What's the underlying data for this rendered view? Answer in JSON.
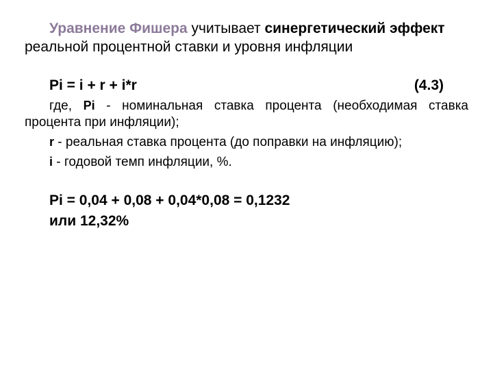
{
  "intro": {
    "title_highlight": "Уравнение Фишера",
    "part1": " учитывает ",
    "bold_text": "синергетический эффект",
    "part2": " реальной процентной ставки и уровня инфляции"
  },
  "formula": {
    "expr": "Pi = i + r + i*r",
    "num": "(4.3)"
  },
  "defs": {
    "d1_pre": "где, ",
    "d1_var": "Pi",
    "d1_text": " - номинальная ставка процента (необходимая ставка процента при инфляции);",
    "d2_var": "r",
    "d2_text": " - реальная ставка процента (до поправки на инфляцию);",
    "d3_var": "i",
    "d3_text": " - годовой темп инфляции, %."
  },
  "calc": {
    "line1": "Pi = 0,04 + 0,08 + 0,04*0,08 = 0,1232",
    "line2": "или 12,32%"
  },
  "colors": {
    "highlight": "#8c7a9a",
    "text": "#000000",
    "bg": "#ffffff"
  }
}
